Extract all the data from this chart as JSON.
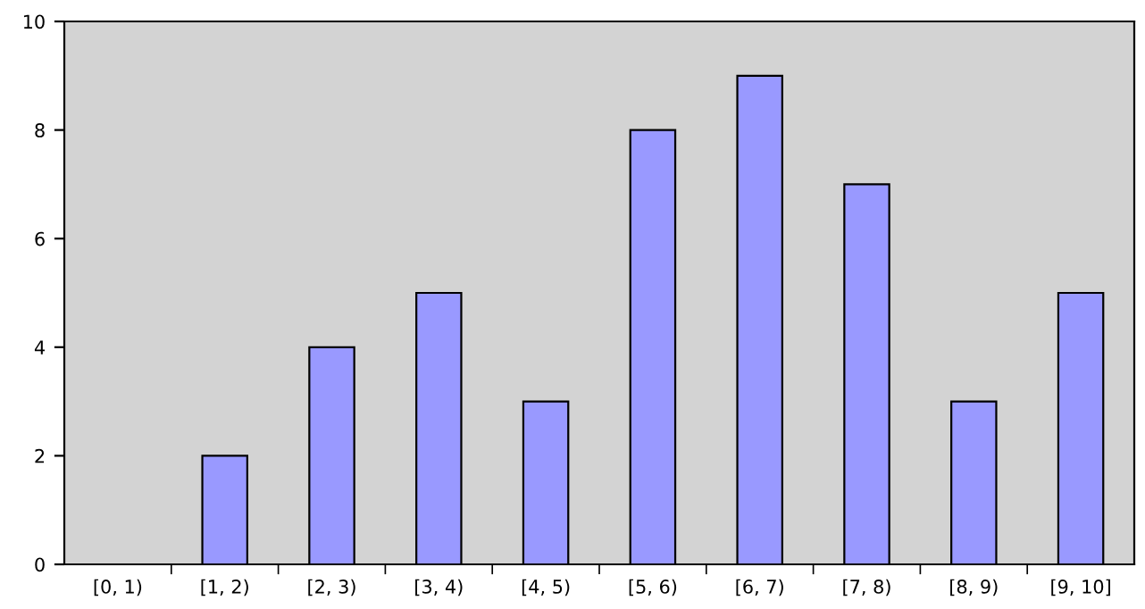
{
  "chart_data": {
    "type": "bar",
    "categories": [
      "[0, 1)",
      "[1, 2)",
      "[2, 3)",
      "[3, 4)",
      "[4, 5)",
      "[5, 6)",
      "[6, 7)",
      "[7, 8)",
      "[8, 9)",
      "[9, 10]"
    ],
    "values": [
      0,
      2,
      4,
      5,
      3,
      8,
      9,
      7,
      3,
      5
    ],
    "color": "#9999ff",
    "ylim": [
      0,
      10
    ],
    "yticks": [
      0,
      2,
      4,
      6,
      8,
      10
    ],
    "grid": false,
    "legend": false
  }
}
